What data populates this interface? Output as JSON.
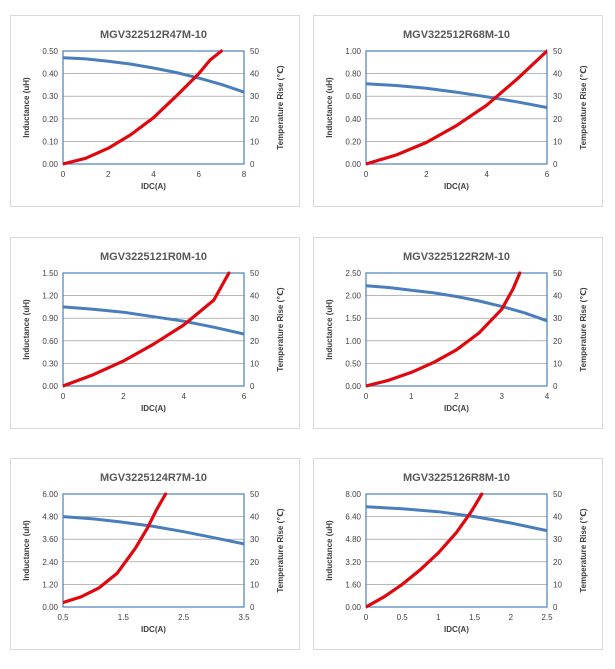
{
  "colors": {
    "inductance": "#4a7ebb",
    "temperature": "#e0080f",
    "grid": "#8c8c8c",
    "frame": "#4a7ebb"
  },
  "chart_data": [
    {
      "type": "line",
      "title": "MGV322512R47M-10",
      "xlabel": "IDC(A)",
      "ylabel": "Inductance (uH)",
      "y2label": "Temperature Rise (℃)",
      "xlim": [
        0,
        8
      ],
      "ylim": [
        0,
        0.5
      ],
      "y2lim": [
        0,
        50
      ],
      "xticks": [
        "0",
        "2",
        "4",
        "6",
        "8"
      ],
      "yticks": [
        "0.00",
        "0.10",
        "0.20",
        "0.30",
        "0.40",
        "0.50"
      ],
      "y2ticks": [
        "0",
        "10",
        "20",
        "30",
        "40",
        "50"
      ],
      "series": [
        {
          "name": "Inductance",
          "axis": "left",
          "x": [
            0,
            1,
            2,
            3,
            4,
            5,
            6,
            7,
            8
          ],
          "y": [
            0.47,
            0.465,
            0.455,
            0.442,
            0.425,
            0.405,
            0.38,
            0.352,
            0.318
          ]
        },
        {
          "name": "Temperature Rise",
          "axis": "right",
          "x": [
            0,
            1,
            2,
            3,
            4,
            5,
            6,
            6.5,
            7
          ],
          "y": [
            0,
            2.5,
            7,
            13,
            20.5,
            30,
            40,
            46,
            50
          ]
        }
      ]
    },
    {
      "type": "line",
      "title": "MGV322512R68M-10",
      "xlabel": "IDC(A)",
      "ylabel": "Inductance (uH)",
      "y2label": "Temperature Rise (℃)",
      "xlim": [
        0,
        6
      ],
      "ylim": [
        0,
        1.0
      ],
      "y2lim": [
        0,
        50
      ],
      "xticks": [
        "0",
        "2",
        "4",
        "6"
      ],
      "yticks": [
        "0.00",
        "0.20",
        "0.40",
        "0.60",
        "0.80",
        "1.00"
      ],
      "y2ticks": [
        "0",
        "10",
        "20",
        "30",
        "40",
        "50"
      ],
      "series": [
        {
          "name": "Inductance",
          "axis": "left",
          "x": [
            0,
            1,
            2,
            3,
            4,
            5,
            6
          ],
          "y": [
            0.71,
            0.695,
            0.67,
            0.635,
            0.595,
            0.55,
            0.5
          ]
        },
        {
          "name": "Temperature Rise",
          "axis": "right",
          "x": [
            0,
            1,
            2,
            3,
            4,
            5,
            6
          ],
          "y": [
            0,
            4,
            9.5,
            17,
            26,
            37.5,
            50
          ]
        }
      ]
    },
    {
      "type": "line",
      "title": "MGV3225121R0M-10",
      "xlabel": "IDC(A)",
      "ylabel": "Inductance (uH)",
      "y2label": "Temperature Rise (℃)",
      "xlim": [
        0,
        6
      ],
      "ylim": [
        0,
        1.5
      ],
      "y2lim": [
        0,
        50
      ],
      "xticks": [
        "0",
        "2",
        "4",
        "6"
      ],
      "yticks": [
        "0.00",
        "0.30",
        "0.60",
        "0.90",
        "1.20",
        "1.50"
      ],
      "y2ticks": [
        "0",
        "10",
        "20",
        "30",
        "40",
        "50"
      ],
      "series": [
        {
          "name": "Inductance",
          "axis": "left",
          "x": [
            0,
            1,
            2,
            3,
            4,
            5,
            6
          ],
          "y": [
            1.05,
            1.02,
            0.98,
            0.92,
            0.86,
            0.78,
            0.69
          ]
        },
        {
          "name": "Temperature Rise",
          "axis": "right",
          "x": [
            0,
            1,
            2,
            3,
            4,
            5,
            5.5
          ],
          "y": [
            0,
            5,
            11,
            18.5,
            27,
            38,
            50
          ]
        }
      ]
    },
    {
      "type": "line",
      "title": "MGV3225122R2M-10",
      "xlabel": "IDC(A)",
      "ylabel": "Inductance (uH)",
      "y2label": "Temperature Rise (℃)",
      "xlim": [
        0,
        4
      ],
      "ylim": [
        0,
        2.5
      ],
      "y2lim": [
        0,
        50
      ],
      "xticks": [
        "0",
        "1",
        "2",
        "3",
        "4"
      ],
      "yticks": [
        "0.00",
        "0.50",
        "1.00",
        "1.50",
        "2.00",
        "2.50"
      ],
      "y2ticks": [
        "0",
        "10",
        "20",
        "30",
        "40",
        "50"
      ],
      "series": [
        {
          "name": "Inductance",
          "axis": "left",
          "x": [
            0,
            0.5,
            1,
            1.5,
            2,
            2.5,
            3,
            3.5,
            4
          ],
          "y": [
            2.22,
            2.18,
            2.12,
            2.06,
            1.98,
            1.88,
            1.76,
            1.62,
            1.44
          ]
        },
        {
          "name": "Temperature Rise",
          "axis": "right",
          "x": [
            0,
            0.5,
            1,
            1.5,
            2,
            2.5,
            3,
            3.25,
            3.4
          ],
          "y": [
            0,
            2.5,
            6,
            10.5,
            16,
            23.5,
            34,
            43,
            50
          ]
        }
      ]
    },
    {
      "type": "line",
      "title": "MGV3225124R7M-10",
      "xlabel": "IDC(A)",
      "ylabel": "Inductance (uH)",
      "y2label": "Temperature Rise (℃)",
      "xlim": [
        0.5,
        3.5
      ],
      "ylim": [
        0,
        6.0
      ],
      "y2lim": [
        0,
        50
      ],
      "xticks": [
        "0.5",
        "1.5",
        "2.5",
        "3.5"
      ],
      "yticks": [
        "0.00",
        "1.20",
        "2.40",
        "3.60",
        "4.80",
        "6.00"
      ],
      "y2ticks": [
        "0",
        "10",
        "20",
        "30",
        "40",
        "50"
      ],
      "series": [
        {
          "name": "Inductance",
          "axis": "left",
          "x": [
            0.5,
            1,
            1.5,
            2,
            2.5,
            3,
            3.5
          ],
          "y": [
            4.8,
            4.68,
            4.5,
            4.28,
            4.0,
            3.68,
            3.35
          ]
        },
        {
          "name": "Temperature Rise",
          "axis": "right",
          "x": [
            0.5,
            0.8,
            1.1,
            1.4,
            1.7,
            1.9,
            2.05,
            2.2
          ],
          "y": [
            2,
            4.5,
            8.5,
            15,
            26,
            35,
            43,
            50
          ]
        }
      ]
    },
    {
      "type": "line",
      "title": "MGV3225126R8M-10",
      "xlabel": "IDC(A)",
      "ylabel": "Inductance (uH)",
      "y2label": "Temperature Rise (℃)",
      "xlim": [
        0,
        2.5
      ],
      "ylim": [
        0,
        8.0
      ],
      "y2lim": [
        0,
        50
      ],
      "xticks": [
        "0",
        "0.5",
        "1",
        "1.5",
        "2",
        "2.5"
      ],
      "yticks": [
        "0.00",
        "1.60",
        "3.20",
        "4.80",
        "6.40",
        "8.00"
      ],
      "y2ticks": [
        "0",
        "10",
        "20",
        "30",
        "40",
        "50"
      ],
      "series": [
        {
          "name": "Inductance",
          "axis": "left",
          "x": [
            0,
            0.5,
            1,
            1.5,
            2,
            2.5
          ],
          "y": [
            7.1,
            6.95,
            6.75,
            6.4,
            5.95,
            5.4
          ]
        },
        {
          "name": "Temperature Rise",
          "axis": "right",
          "x": [
            0,
            0.25,
            0.5,
            0.75,
            1,
            1.25,
            1.45,
            1.6
          ],
          "y": [
            0,
            4.5,
            10,
            16.5,
            24,
            33,
            42,
            50
          ]
        }
      ]
    }
  ]
}
